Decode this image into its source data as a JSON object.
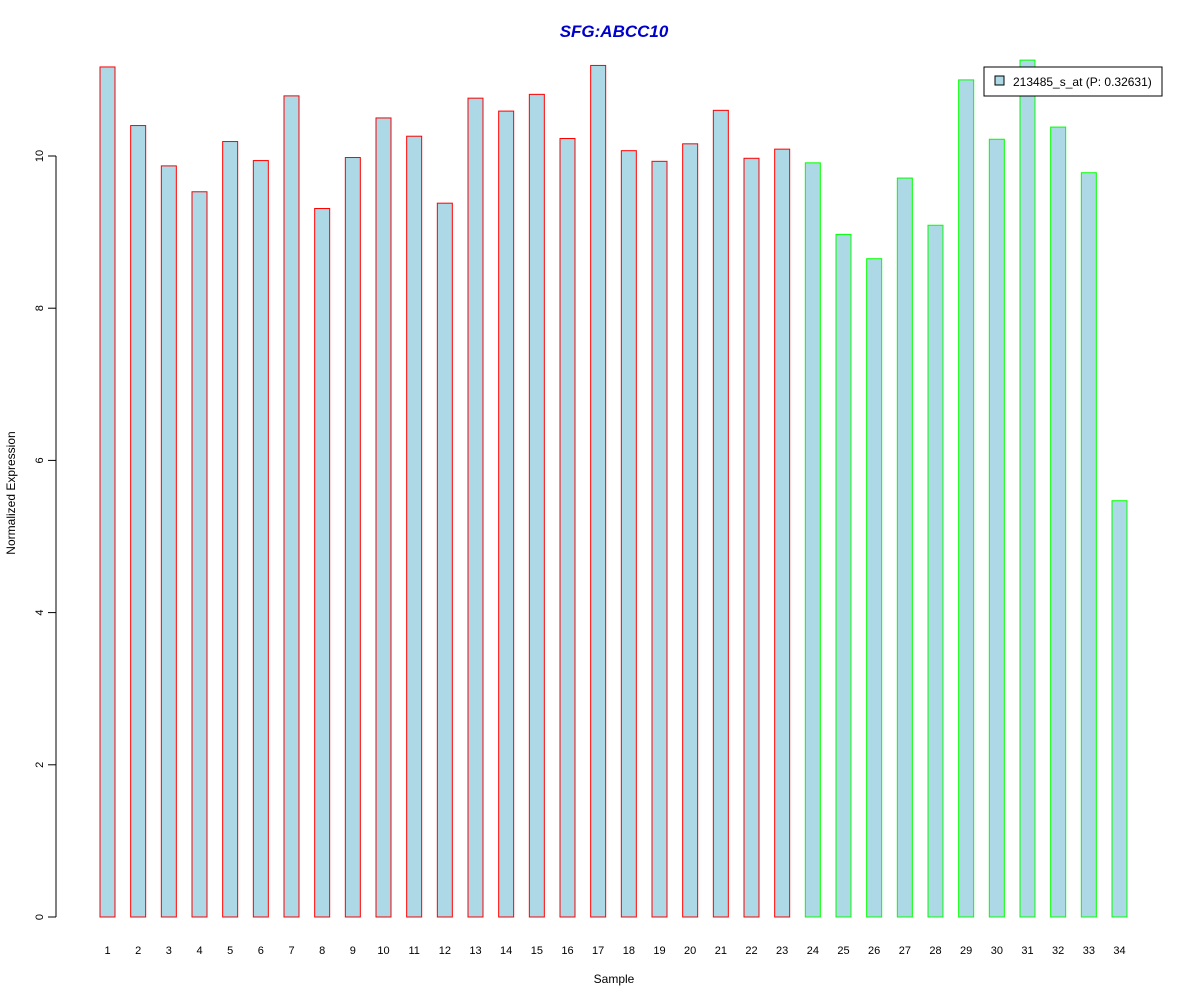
{
  "chart_data": {
    "type": "bar",
    "title": "SFG:ABCC10",
    "xlabel": "Sample",
    "ylabel": "Normalized Expression",
    "ylim": [
      0,
      11.3
    ],
    "yticks": [
      0,
      2,
      4,
      6,
      8,
      10
    ],
    "grid": false,
    "legend_position": "top-right",
    "categories": [
      "1",
      "2",
      "3",
      "4",
      "5",
      "6",
      "7",
      "8",
      "9",
      "10",
      "11",
      "12",
      "13",
      "14",
      "15",
      "16",
      "17",
      "18",
      "19",
      "20",
      "21",
      "22",
      "23",
      "24",
      "25",
      "26",
      "27",
      "28",
      "29",
      "30",
      "31",
      "32",
      "33",
      "34"
    ],
    "series": [
      {
        "name": "213485_s_at (P: 0.32631)",
        "values": [
          11.17,
          10.4,
          9.87,
          9.53,
          10.19,
          9.94,
          10.79,
          9.31,
          9.98,
          10.5,
          10.26,
          9.38,
          10.76,
          10.59,
          10.81,
          10.23,
          11.19,
          10.07,
          9.93,
          10.16,
          10.6,
          9.97,
          10.09,
          9.91,
          8.97,
          8.65,
          9.71,
          9.09,
          11.0,
          10.22,
          11.26,
          10.38,
          9.78,
          5.47
        ]
      }
    ],
    "group_outline": [
      "red",
      "red",
      "red",
      "red",
      "red",
      "red",
      "red",
      "red",
      "red",
      "red",
      "red",
      "red",
      "red",
      "red",
      "red",
      "red",
      "red",
      "red",
      "red",
      "red",
      "red",
      "red",
      "red",
      "green",
      "green",
      "green",
      "green",
      "green",
      "green",
      "green",
      "green",
      "green",
      "green",
      "green"
    ],
    "colors": {
      "bar_fill": "#add8e6",
      "group_red": "#ff0000",
      "group_green": "#00ff00",
      "title": "#0000cc",
      "axis": "#000000"
    }
  }
}
